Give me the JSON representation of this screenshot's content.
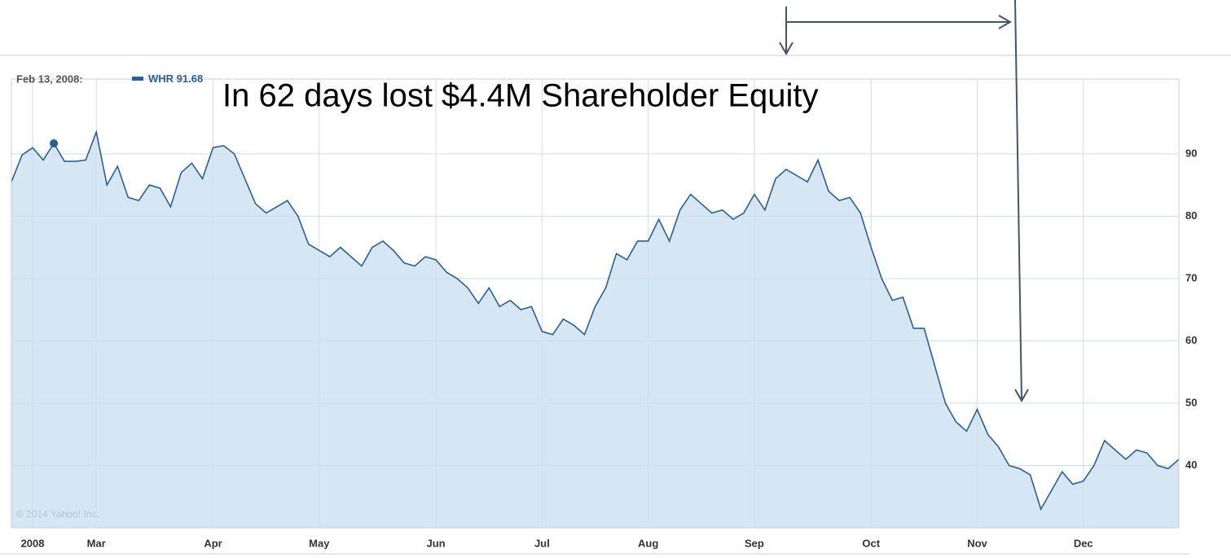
{
  "chart_data": {
    "type": "area",
    "hover_label": "Feb 13, 2008:",
    "annotation": "In 62 days lost $4.4M Shareholder Equity",
    "credit": "© 2014 Yahoo! Inc.",
    "highlight_index": 4,
    "categories": [
      null,
      null,
      "2008",
      null,
      null,
      null,
      null,
      null,
      "Mar",
      null,
      null,
      null,
      null,
      null,
      null,
      null,
      null,
      null,
      null,
      "Apr",
      null,
      null,
      null,
      null,
      null,
      null,
      null,
      null,
      null,
      "May",
      null,
      null,
      null,
      null,
      null,
      null,
      null,
      null,
      null,
      null,
      "Jun",
      null,
      null,
      null,
      null,
      null,
      null,
      null,
      null,
      null,
      "Jul",
      null,
      null,
      null,
      null,
      null,
      null,
      null,
      null,
      null,
      "Aug",
      null,
      null,
      null,
      null,
      null,
      null,
      null,
      null,
      null,
      "Sep",
      null,
      null,
      null,
      null,
      null,
      null,
      null,
      null,
      null,
      null,
      "Oct",
      null,
      null,
      null,
      null,
      null,
      null,
      null,
      null,
      null,
      "Nov",
      null,
      null,
      null,
      null,
      null,
      null,
      null,
      null,
      null,
      "Dec",
      null,
      null,
      null,
      null,
      null,
      null,
      null,
      null,
      null
    ],
    "series": [
      {
        "name": "WHR",
        "color": "#2b5f92",
        "fill": "#d6e6f3",
        "values": [
          85.5,
          89.8,
          91,
          89,
          91.68,
          88.8,
          88.8,
          89,
          93.5,
          85,
          88,
          83,
          82.5,
          85,
          84.5,
          81.5,
          87,
          88.5,
          86,
          91,
          91.3,
          90,
          86,
          82,
          80.5,
          81.5,
          82.5,
          80,
          75.5,
          74.5,
          73.5,
          75,
          73.5,
          72,
          75,
          76,
          74.5,
          72.5,
          72,
          73.5,
          73,
          71,
          70,
          68.5,
          66,
          68.5,
          65.5,
          66.5,
          65,
          65.5,
          61.5,
          61,
          63.5,
          62.5,
          61,
          65.5,
          68.5,
          74,
          73,
          76,
          76,
          79.5,
          76,
          81,
          83.5,
          82,
          80.5,
          81,
          79.5,
          80.5,
          83.5,
          81,
          86,
          87.5,
          86.5,
          85.5,
          89,
          84,
          82.5,
          83,
          80.5,
          75,
          70,
          66.5,
          67,
          62,
          62,
          56,
          50,
          47,
          45.5,
          49,
          45,
          43,
          40,
          39.5,
          38.5,
          33,
          36,
          39,
          37,
          37.5,
          40,
          44,
          42.5,
          41,
          42.5,
          42,
          40,
          39.5,
          41
        ]
      }
    ],
    "ylim": [
      30,
      102
    ],
    "yticks": [
      40,
      50,
      60,
      70,
      80,
      90
    ],
    "grid": true
  }
}
